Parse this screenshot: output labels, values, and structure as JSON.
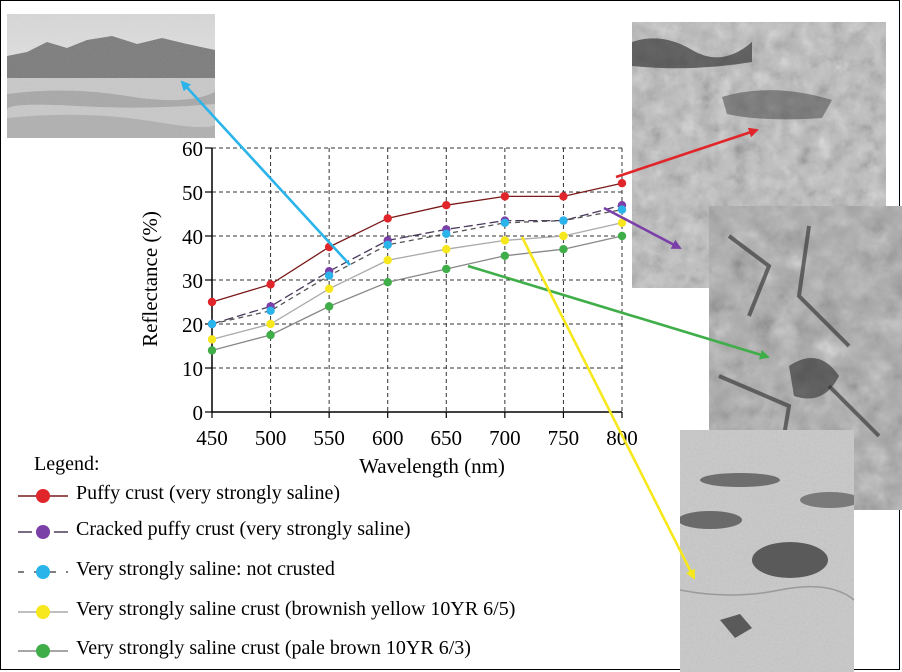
{
  "chart_data": {
    "type": "line",
    "title": "",
    "xlabel": "Wavelength (nm)",
    "ylabel": "Reflectance (%)",
    "x": [
      450,
      500,
      550,
      600,
      650,
      700,
      750,
      800
    ],
    "xlim": [
      450,
      800
    ],
    "ylim": [
      0,
      60
    ],
    "xticks": [
      "450",
      "500",
      "550",
      "600",
      "650",
      "700",
      "750",
      "800"
    ],
    "yticks": [
      "0",
      "10",
      "20",
      "30",
      "40",
      "50",
      "60"
    ],
    "grid": true,
    "series": [
      {
        "name": "Puffy crust (very strongly saline)",
        "color": "#e0262a",
        "dash": "solid",
        "values": [
          25,
          29,
          37.5,
          44,
          47,
          49,
          49,
          52
        ]
      },
      {
        "name": "Cracked puffy crust (very strongly saline)",
        "color": "#7b3fa8",
        "dash": "longdash",
        "values": [
          20,
          24,
          32,
          39,
          41.5,
          43.5,
          43.5,
          47
        ]
      },
      {
        "name": "Very strongly saline: not crusted",
        "color": "#2ab4ea",
        "dash": "dashed",
        "values": [
          20,
          23,
          31,
          38,
          40.5,
          43,
          43.5,
          46
        ]
      },
      {
        "name": "Very strongly saline crust (brownish yellow 10YR 6/5)",
        "color": "#f6e81c",
        "dash": "solid",
        "values": [
          16.5,
          20,
          28,
          34.5,
          37,
          39,
          40,
          43
        ]
      },
      {
        "name": "Very strongly saline crust (pale brown 10YR 6/3)",
        "color": "#3fae49",
        "dash": "solid",
        "values": [
          14,
          17.5,
          24,
          29.5,
          32.5,
          35.5,
          37,
          40
        ]
      }
    ]
  },
  "legend": {
    "title": "Legend:"
  }
}
